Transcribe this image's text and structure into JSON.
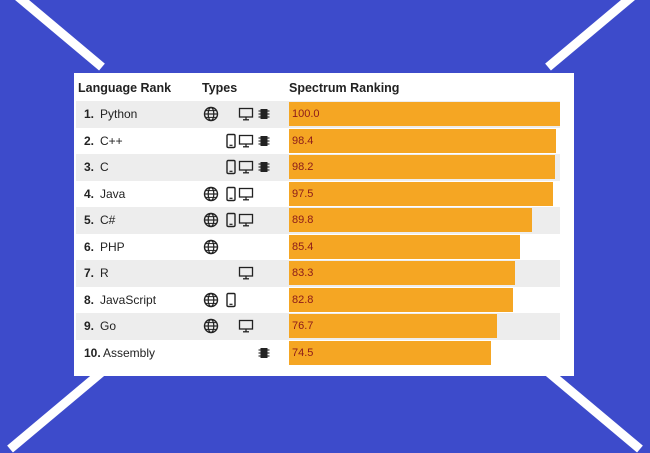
{
  "table": {
    "headers": {
      "rank": "Language Rank",
      "types": "Types",
      "spectrum": "Spectrum Ranking"
    },
    "rows": [
      {
        "rank": "1.",
        "language": "Python",
        "value_text": "100.0",
        "types": [
          "web-icon",
          "desktop-icon",
          "embedded-icon"
        ]
      },
      {
        "rank": "2.",
        "language": "C++",
        "value_text": "98.4",
        "types": [
          "mobile-icon",
          "desktop-icon",
          "embedded-icon"
        ]
      },
      {
        "rank": "3.",
        "language": "C",
        "value_text": "98.2",
        "types": [
          "mobile-icon",
          "desktop-icon",
          "embedded-icon"
        ]
      },
      {
        "rank": "4.",
        "language": "Java",
        "value_text": "97.5",
        "types": [
          "web-icon",
          "mobile-icon",
          "desktop-icon"
        ]
      },
      {
        "rank": "5.",
        "language": "C#",
        "value_text": "89.8",
        "types": [
          "web-icon",
          "mobile-icon",
          "desktop-icon"
        ]
      },
      {
        "rank": "6.",
        "language": "PHP",
        "value_text": "85.4",
        "types": [
          "web-icon"
        ]
      },
      {
        "rank": "7.",
        "language": "R",
        "value_text": "83.3",
        "types": [
          "desktop-icon"
        ]
      },
      {
        "rank": "8.",
        "language": "JavaScript",
        "value_text": "82.8",
        "types": [
          "web-icon",
          "mobile-icon"
        ]
      },
      {
        "rank": "9.",
        "language": "Go",
        "value_text": "76.7",
        "types": [
          "web-icon",
          "desktop-icon"
        ]
      },
      {
        "rank": "10.",
        "language": "Assembly",
        "value_text": "74.5",
        "types": [
          "embedded-icon"
        ]
      }
    ]
  },
  "chart_data": {
    "type": "bar",
    "orientation": "horizontal",
    "categories": [
      "Python",
      "C++",
      "C",
      "Java",
      "C#",
      "PHP",
      "R",
      "JavaScript",
      "Go",
      "Assembly"
    ],
    "values": [
      100.0,
      98.4,
      98.2,
      97.5,
      89.8,
      85.4,
      83.3,
      82.8,
      76.7,
      74.5
    ],
    "title": "",
    "xlabel": "Spectrum Ranking",
    "ylabel": "Language Rank",
    "xlim": [
      0,
      100
    ]
  },
  "colors": {
    "background": "#3d4bcb",
    "bar": "#f5a623",
    "value_text": "#8b1a1a",
    "row_alt": "#ededed"
  }
}
